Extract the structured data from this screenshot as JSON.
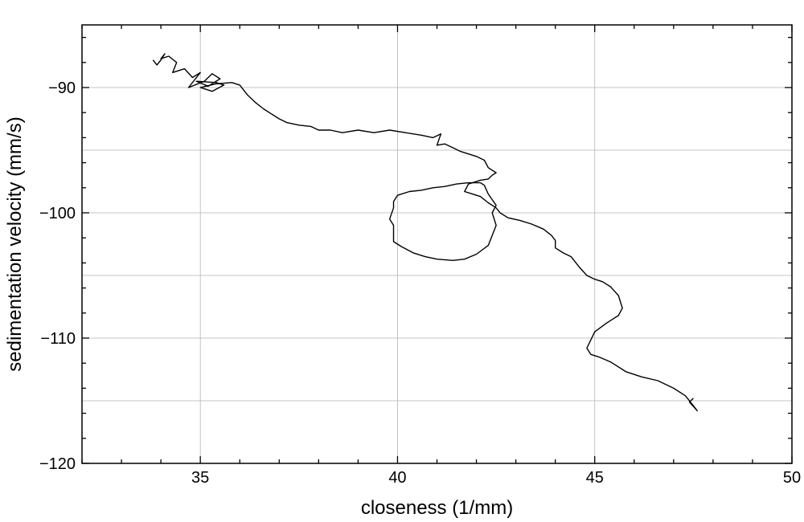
{
  "chart_data": {
    "type": "line",
    "title": "",
    "xlabel": "closeness (1/mm)",
    "ylabel": "sedimentation velocity (mm/s)",
    "xlim": [
      32,
      50
    ],
    "ylim": [
      -120,
      -85
    ],
    "xticks": [
      35,
      40,
      45,
      50
    ],
    "yticks": [
      -90,
      -100,
      -110,
      -120
    ],
    "xtick_labels": [
      "35",
      "40",
      "45",
      "50"
    ],
    "ytick_labels": [
      "−90",
      "−100",
      "−110",
      "−120"
    ],
    "grid": true,
    "line_color": "#000000",
    "series": [
      {
        "x": [
          33.8,
          33.9,
          34.0,
          34.1,
          34.0,
          34.2,
          34.4,
          34.3,
          34.6,
          34.8,
          35.0,
          34.7,
          35.1,
          35.3,
          35.5,
          35.2,
          34.9,
          35.4,
          35.6,
          35.3,
          35.0,
          35.4,
          35.8,
          36.0,
          36.2,
          36.4,
          36.6,
          36.8,
          37.0,
          37.2,
          37.5,
          37.8,
          38.0,
          38.3,
          38.6,
          39.0,
          39.4,
          39.8,
          40.2,
          40.6,
          40.9,
          41.1,
          41.0,
          41.2,
          41.4,
          41.6,
          41.8,
          42.0,
          42.2,
          42.3,
          42.5,
          42.4,
          42.3,
          42.1,
          41.8,
          41.7,
          41.9,
          42.1,
          42.3,
          42.5,
          42.6,
          42.8,
          43.1,
          43.4,
          43.7,
          43.9,
          44.0,
          44.0,
          44.2,
          44.4,
          44.6,
          44.8,
          45.0,
          45.2,
          45.4,
          45.6,
          45.7,
          45.6,
          45.3,
          45.0,
          44.8,
          44.9,
          45.1,
          45.4,
          45.8,
          46.2,
          46.6,
          47.0,
          47.3,
          47.5,
          47.6,
          47.4,
          47.5
        ],
        "y": [
          -87.8,
          -88.2,
          -87.8,
          -87.3,
          -87.7,
          -87.5,
          -88.0,
          -88.8,
          -88.5,
          -89.2,
          -88.8,
          -90.0,
          -89.5,
          -88.9,
          -89.3,
          -89.9,
          -89.5,
          -89.6,
          -89.8,
          -90.3,
          -90.0,
          -89.7,
          -89.6,
          -89.8,
          -90.6,
          -91.2,
          -91.7,
          -92.1,
          -92.5,
          -92.8,
          -93.0,
          -93.1,
          -93.4,
          -93.4,
          -93.6,
          -93.4,
          -93.6,
          -93.4,
          -93.6,
          -93.8,
          -94.0,
          -93.7,
          -94.6,
          -94.5,
          -94.8,
          -95.1,
          -95.3,
          -95.5,
          -95.8,
          -96.4,
          -96.8,
          -97.0,
          -97.3,
          -97.4,
          -97.7,
          -98.3,
          -98.5,
          -98.7,
          -99.2,
          -99.6,
          -100.0,
          -100.4,
          -100.6,
          -100.9,
          -101.3,
          -101.8,
          -102.2,
          -102.8,
          -103.2,
          -103.5,
          -104.3,
          -105.0,
          -105.3,
          -105.5,
          -105.9,
          -106.6,
          -107.6,
          -108.2,
          -108.8,
          -109.5,
          -110.8,
          -111.3,
          -111.5,
          -111.9,
          -112.7,
          -113.1,
          -113.4,
          -114.0,
          -114.6,
          -115.4,
          -115.8,
          -115.1,
          -114.8
        ]
      },
      {
        "x": [
          42.1,
          41.8,
          41.5,
          41.2,
          40.9,
          40.6,
          40.3,
          40.0,
          39.9,
          39.9,
          39.8,
          39.9,
          39.9,
          40.1,
          40.4,
          40.7,
          41.0,
          41.4,
          41.7,
          42.0,
          42.3,
          42.4,
          42.5,
          42.4,
          42.5,
          42.3,
          42.2,
          42.1
        ],
        "y": [
          -97.6,
          -97.6,
          -97.7,
          -97.9,
          -98.0,
          -98.2,
          -98.3,
          -98.6,
          -99.1,
          -99.6,
          -100.5,
          -101.0,
          -102.3,
          -102.7,
          -103.2,
          -103.5,
          -103.7,
          -103.8,
          -103.7,
          -103.3,
          -102.6,
          -101.8,
          -101.0,
          -100.0,
          -99.4,
          -98.5,
          -97.8,
          -97.6
        ]
      }
    ]
  }
}
